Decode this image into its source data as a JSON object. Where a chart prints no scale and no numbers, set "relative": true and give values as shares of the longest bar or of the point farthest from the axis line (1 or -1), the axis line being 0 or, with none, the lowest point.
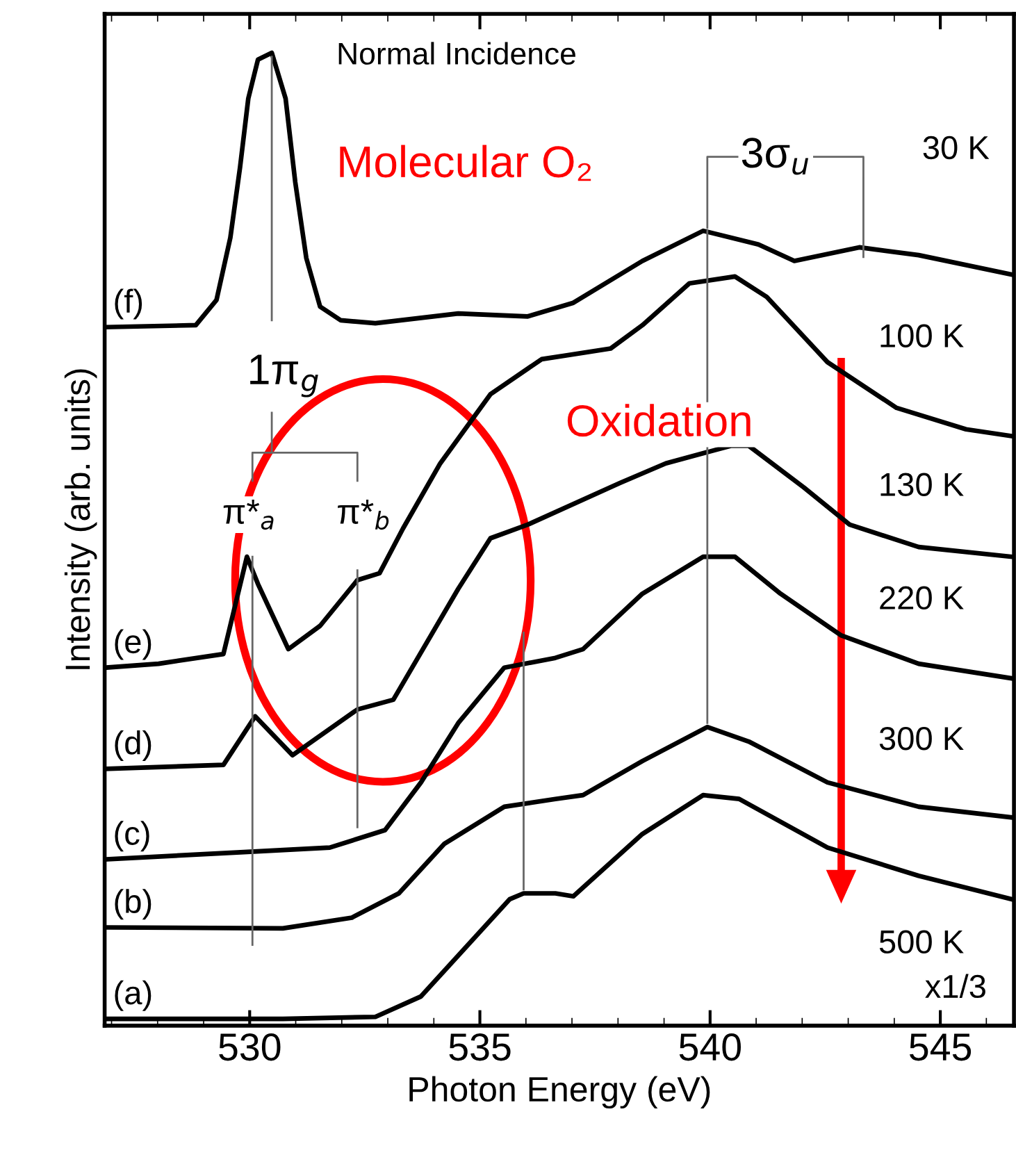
{
  "chart_data": {
    "type": "line",
    "relative": true,
    "xlabel": "Photon Energy (eV)",
    "ylabel": "Intensity (arb. units)",
    "xlim": [
      526.85,
      546.6
    ],
    "xticks": [
      530,
      535,
      540,
      545
    ],
    "grid": false,
    "legend": false,
    "series": [
      {
        "name": "(f)",
        "color": "#000000",
        "x": [
          526.88,
          528.83,
          529.28,
          529.58,
          529.79,
          529.97,
          530.18,
          530.48,
          530.78,
          530.99,
          531.23,
          531.53,
          531.98,
          532.73,
          534.53,
          536.04,
          537.03,
          538.53,
          539.85,
          541.05,
          541.83,
          543.24,
          544.53,
          546.55
        ],
        "values": [
          0.718,
          0.72,
          0.746,
          0.81,
          0.882,
          0.953,
          0.993,
          1,
          0.953,
          0.867,
          0.789,
          0.739,
          0.725,
          0.722,
          0.732,
          0.729,
          0.743,
          0.786,
          0.817,
          0.803,
          0.786,
          0.8,
          0.792,
          0.772
        ]
      },
      {
        "name": "(e)",
        "color": "#000000",
        "x": [
          526.88,
          528.02,
          529.43,
          529.94,
          530.18,
          530.84,
          531.53,
          532.34,
          532.82,
          533.33,
          534.14,
          535.23,
          536.34,
          537.84,
          538.53,
          539.55,
          540.54,
          541.23,
          542.55,
          544.05,
          545.56,
          546.55
        ],
        "values": [
          0.368,
          0.372,
          0.382,
          0.482,
          0.454,
          0.387,
          0.411,
          0.458,
          0.465,
          0.511,
          0.578,
          0.649,
          0.685,
          0.696,
          0.72,
          0.763,
          0.77,
          0.749,
          0.682,
          0.635,
          0.613,
          0.606
        ]
      },
      {
        "name": "(d)",
        "color": "#000000",
        "x": [
          526.88,
          529.43,
          530.12,
          530.93,
          532.34,
          533.12,
          534.53,
          535.23,
          536.04,
          538.05,
          539.04,
          540.45,
          540.84,
          542.04,
          543.03,
          544.53,
          546.55
        ],
        "values": [
          0.264,
          0.268,
          0.318,
          0.278,
          0.325,
          0.335,
          0.449,
          0.501,
          0.515,
          0.558,
          0.578,
          0.596,
          0.596,
          0.553,
          0.515,
          0.492,
          0.482
        ]
      },
      {
        "name": "(c)",
        "color": "#000000",
        "x": [
          526.88,
          529.73,
          531.74,
          532.94,
          533.72,
          534.53,
          535.53,
          536.64,
          537.24,
          538.53,
          539.85,
          540.54,
          541.53,
          542.85,
          544.53,
          546.55
        ],
        "values": [
          0.171,
          0.178,
          0.183,
          0.201,
          0.25,
          0.311,
          0.368,
          0.378,
          0.387,
          0.444,
          0.482,
          0.482,
          0.444,
          0.401,
          0.372,
          0.357
        ]
      },
      {
        "name": "(b)",
        "color": "#000000",
        "x": [
          526.88,
          530.72,
          532.22,
          533.24,
          534.23,
          535.53,
          536.64,
          537.24,
          538.53,
          539.94,
          540.84,
          542.55,
          544.53,
          546.55
        ],
        "values": [
          0.101,
          0.1,
          0.111,
          0.136,
          0.187,
          0.225,
          0.233,
          0.237,
          0.272,
          0.307,
          0.292,
          0.25,
          0.225,
          0.214
        ]
      },
      {
        "name": "(a)",
        "color": "#000000",
        "x": [
          526.88,
          530.72,
          532.73,
          533.72,
          534.74,
          535.65,
          535.95,
          536.64,
          537.03,
          538.53,
          539.85,
          540.63,
          542.55,
          544.53,
          546.55
        ],
        "values": [
          0.007,
          0.007,
          0.009,
          0.03,
          0.083,
          0.13,
          0.136,
          0.136,
          0.133,
          0.197,
          0.237,
          0.233,
          0.183,
          0.154,
          0.13
        ]
      },
      {
        "color": "#666666",
        "x": [
          530.48,
          530.48
        ],
        "values": [
          0.996,
          0.725
        ]
      },
      {
        "color": "#666666",
        "x": [
          530.06,
          530.06,
          532.34,
          532.34
        ],
        "values": [
          0.56,
          0.589,
          0.589,
          0.56
        ]
      },
      {
        "color": "#666666",
        "x": [
          530.48,
          530.48
        ],
        "values": [
          0.63,
          0.589
        ]
      },
      {
        "color": "#666666",
        "x": [
          530.06,
          530.06
        ],
        "values": [
          0.482,
          0.083
        ]
      },
      {
        "color": "#666666",
        "x": [
          532.34,
          532.34
        ],
        "values": [
          0.468,
          0.204
        ]
      },
      {
        "color": "#666666",
        "x": [
          535.95,
          535.95
        ],
        "values": [
          0.404,
          0.14
        ]
      },
      {
        "color": "#666666",
        "x": [
          539.94,
          539.94
        ],
        "values": [
          0.817,
          0.311
        ]
      },
      {
        "color": "#666666",
        "x": [
          539.94,
          539.94,
          543.33,
          543.33
        ],
        "values": [
          0.82,
          0.893,
          0.893,
          0.79
        ]
      }
    ],
    "annotations": [
      "Normal Incidence",
      "Molecular O₂",
      "3σ$_{u}$",
      "30 K",
      "100 K",
      "130 K",
      "220 K",
      "300 K",
      "500 K",
      "x1/3",
      "1π$_{g}$",
      "π*$_{a}$",
      "π*$_{b}$",
      "Oxidation"
    ]
  }
}
